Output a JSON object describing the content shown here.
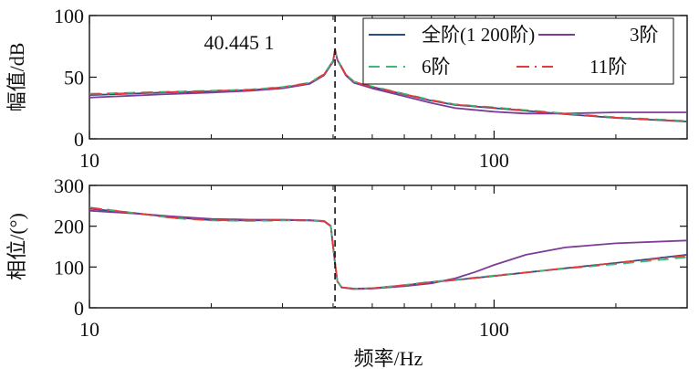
{
  "chart_data": [
    {
      "type": "line",
      "ylabel": "幅值/dB",
      "xscale": "log",
      "xlim": [
        10,
        300
      ],
      "ylim": [
        0,
        100
      ],
      "yticks": [
        0,
        50,
        100
      ],
      "xticks": [
        10,
        100
      ],
      "xtick_labels": [
        "10",
        "100"
      ],
      "annotation": {
        "text": "40.445 1",
        "x": 40.4451
      },
      "legend": {
        "placement": "top-right",
        "entries": [
          "全阶(1 200阶)",
          "3阶",
          "6阶",
          "11阶"
        ]
      },
      "series": [
        {
          "name": "全阶(1 200阶)",
          "color": "#2b4c8c",
          "dash": "solid",
          "x": [
            10,
            15,
            20,
            25,
            30,
            35,
            38,
            40,
            40.445,
            41,
            43,
            45,
            50,
            60,
            70,
            80,
            100,
            150,
            200,
            300
          ],
          "y": [
            35.5,
            37.5,
            38.5,
            39.5,
            41.5,
            45,
            52,
            63,
            72,
            64,
            52,
            46,
            42,
            36,
            31,
            27.5,
            25,
            20,
            17,
            14
          ]
        },
        {
          "name": "3阶",
          "color": "#7d3c98",
          "dash": "solid",
          "x": [
            10,
            15,
            20,
            25,
            30,
            35,
            38,
            40,
            40.445,
            41,
            43,
            45,
            50,
            60,
            70,
            80,
            100,
            120,
            150,
            200,
            300
          ],
          "y": [
            33.5,
            36,
            37.5,
            39,
            41,
            44.5,
            51.5,
            62.5,
            73,
            64,
            51.5,
            45.5,
            41,
            34.5,
            29,
            25,
            22,
            20.5,
            20.5,
            21.5,
            21.5
          ]
        },
        {
          "name": "6阶",
          "color": "#3fb67a",
          "dash": "dashed",
          "x": [
            10,
            15,
            20,
            25,
            30,
            35,
            38,
            40,
            40.445,
            41,
            43,
            45,
            50,
            60,
            70,
            80,
            100,
            150,
            200,
            300
          ],
          "y": [
            36.5,
            38,
            39,
            40,
            42,
            45.5,
            52.5,
            63.5,
            72,
            64.5,
            52.5,
            46.5,
            42.5,
            36.5,
            31.5,
            28,
            25.5,
            20.5,
            17.5,
            14.5
          ]
        },
        {
          "name": "11阶",
          "color": "#e23b3b",
          "dash": "dashdot",
          "x": [
            10,
            15,
            20,
            25,
            30,
            35,
            38,
            40,
            40.445,
            41,
            43,
            45,
            50,
            60,
            70,
            80,
            100,
            150,
            200,
            300
          ],
          "y": [
            36,
            37.8,
            38.8,
            39.8,
            41.8,
            45.2,
            52.2,
            63.2,
            72,
            64.2,
            52.2,
            46.2,
            42.2,
            36.2,
            31.2,
            27.8,
            25.2,
            20.2,
            17.2,
            14.2
          ]
        }
      ]
    },
    {
      "type": "line",
      "ylabel": "相位/(°)",
      "xlabel": "频率/Hz",
      "xscale": "log",
      "xlim": [
        10,
        300
      ],
      "ylim": [
        0,
        300
      ],
      "yticks": [
        0,
        100,
        200,
        300
      ],
      "xticks": [
        10,
        100
      ],
      "xtick_labels": [
        "10",
        "100"
      ],
      "series": [
        {
          "name": "全阶(1 200阶)",
          "color": "#2b4c8c",
          "dash": "solid",
          "x": [
            10,
            13,
            16,
            20,
            25,
            30,
            35,
            38,
            39.5,
            40,
            40.445,
            41,
            42,
            45,
            50,
            60,
            70,
            80,
            100,
            150,
            200,
            300
          ],
          "y": [
            243,
            232,
            222,
            215,
            214,
            215,
            214,
            212,
            200,
            150,
            110,
            65,
            50,
            47,
            48,
            55,
            63,
            68,
            78,
            97,
            110,
            130
          ]
        },
        {
          "name": "3阶",
          "color": "#7d3c98",
          "dash": "solid",
          "x": [
            10,
            13,
            16,
            20,
            25,
            30,
            35,
            38,
            39.5,
            40,
            40.445,
            41,
            42,
            45,
            50,
            60,
            70,
            80,
            90,
            100,
            120,
            150,
            200,
            300
          ],
          "y": [
            238,
            231,
            224,
            218,
            216,
            216,
            215,
            213,
            201,
            150,
            110,
            65,
            50,
            46,
            47,
            53,
            60,
            72,
            88,
            105,
            130,
            148,
            158,
            165
          ]
        },
        {
          "name": "6阶",
          "color": "#3fb67a",
          "dash": "dashed",
          "x": [
            10,
            13,
            16,
            20,
            25,
            30,
            35,
            38,
            39.5,
            40,
            40.445,
            41,
            42,
            45,
            50,
            60,
            70,
            80,
            100,
            150,
            200,
            300
          ],
          "y": [
            246,
            232,
            220,
            214,
            213,
            214,
            214,
            212,
            200,
            150,
            110,
            65,
            50,
            47,
            48,
            56,
            64,
            69,
            79,
            96,
            107,
            124
          ]
        },
        {
          "name": "11阶",
          "color": "#e23b3b",
          "dash": "dashdot",
          "x": [
            10,
            13,
            16,
            20,
            25,
            30,
            35,
            38,
            39.5,
            40,
            40.445,
            41,
            42,
            45,
            50,
            60,
            70,
            80,
            100,
            150,
            200,
            300
          ],
          "y": [
            245,
            232,
            221,
            215,
            214,
            215,
            214,
            212,
            200,
            150,
            110,
            65,
            50,
            47,
            48,
            55,
            63,
            68,
            78,
            97,
            110,
            128
          ]
        }
      ]
    }
  ]
}
